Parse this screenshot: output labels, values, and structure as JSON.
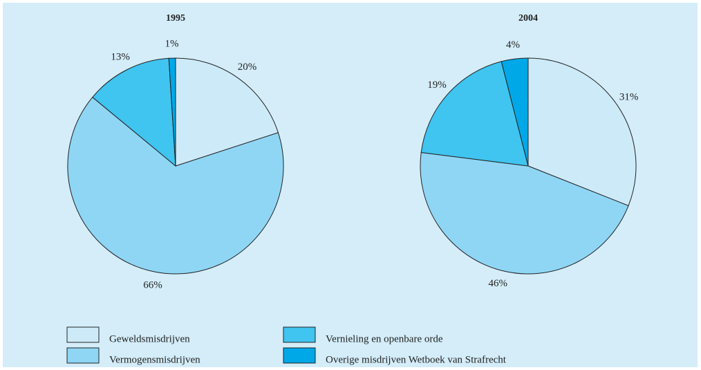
{
  "chart_data": [
    {
      "type": "pie",
      "title": "1995",
      "categories": [
        "Geweldsmisdrijven",
        "Vermogensmisdrijven",
        "Vernieling en openbare orde",
        "Overige misdrijven Wetboek van Strafrecht"
      ],
      "values": [
        20,
        66,
        13,
        1
      ],
      "value_labels": [
        "20%",
        "66%",
        "13%",
        "1%"
      ],
      "colors": [
        "#cdeaf8",
        "#8fd6f5",
        "#40c4f0",
        "#00a8e8"
      ]
    },
    {
      "type": "pie",
      "title": "2004",
      "categories": [
        "Geweldsmisdrijven",
        "Vermogensmisdrijven",
        "Vernieling en openbare orde",
        "Overige misdrijven Wetboek van Strafrecht"
      ],
      "values": [
        31,
        46,
        19,
        4
      ],
      "value_labels": [
        "31%",
        "46%",
        "19%",
        "4%"
      ],
      "colors": [
        "#cdeaf8",
        "#8fd6f5",
        "#40c4f0",
        "#00a8e8"
      ]
    }
  ]
}
